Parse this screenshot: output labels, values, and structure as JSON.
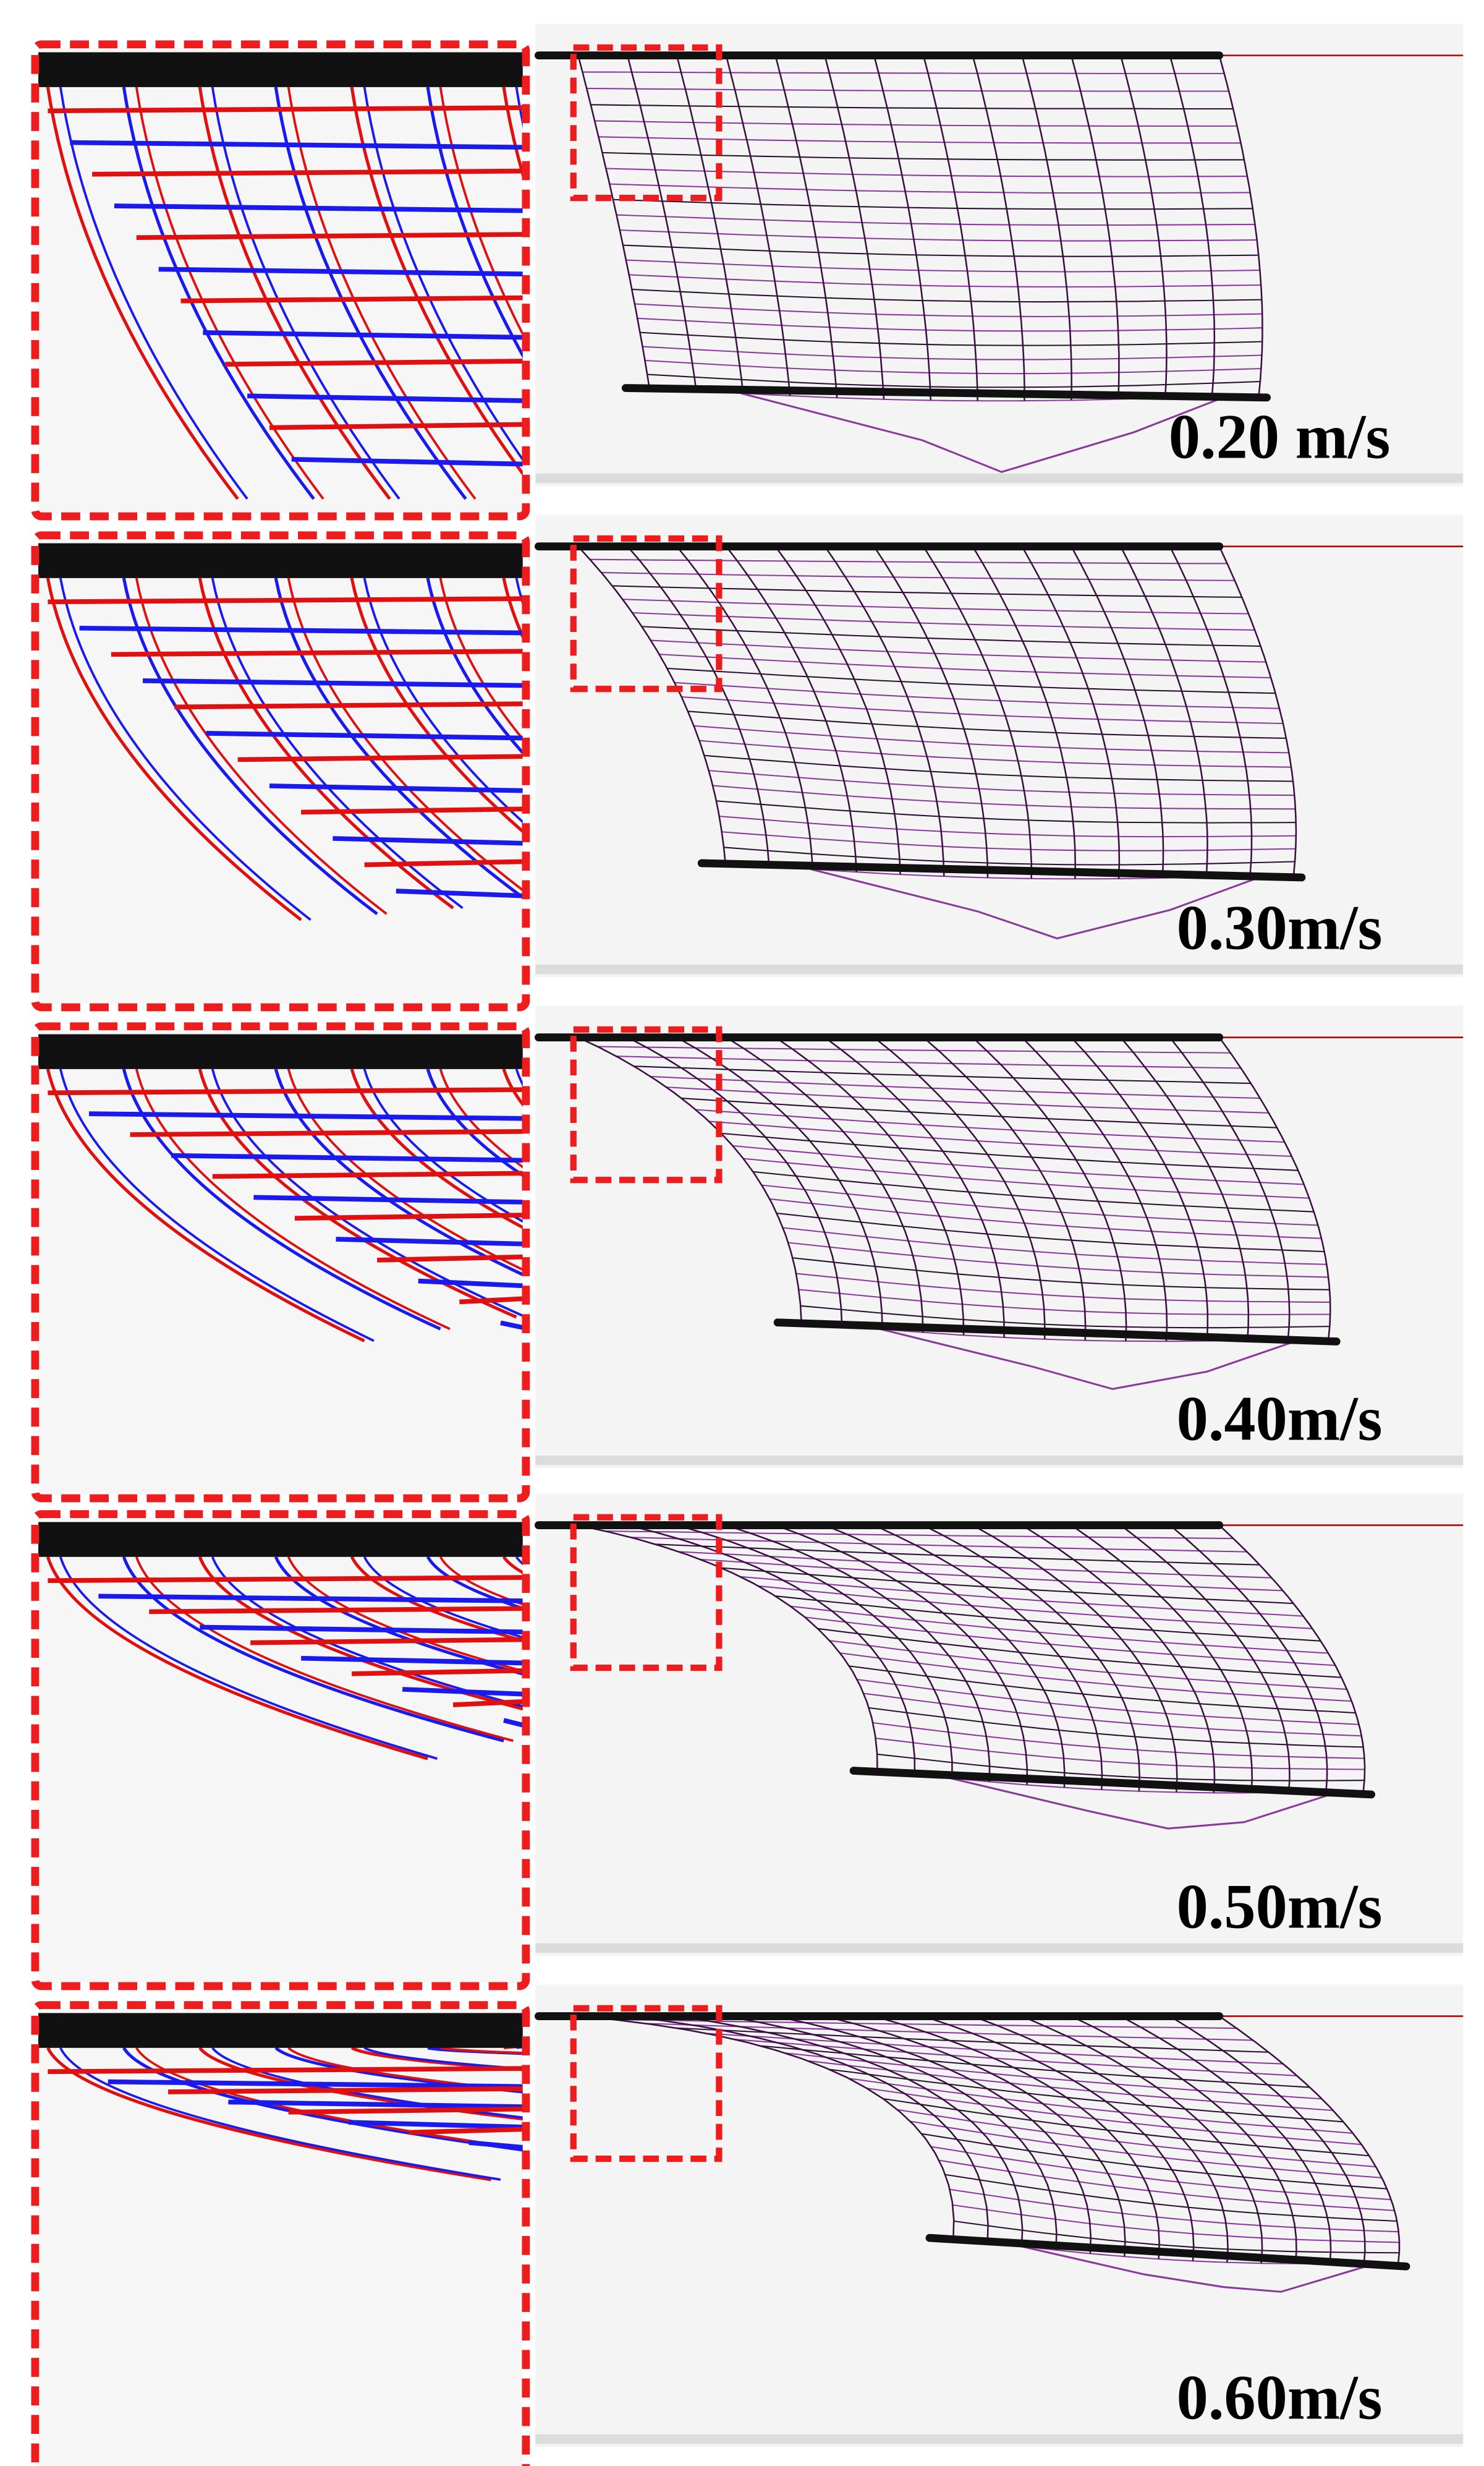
{
  "panels": [
    {
      "label": "0.20 m/s"
    },
    {
      "label": "0.30m/s"
    },
    {
      "label": "0.40m/s"
    },
    {
      "label": "0.50m/s"
    },
    {
      "label": "0.60m/s"
    }
  ]
}
